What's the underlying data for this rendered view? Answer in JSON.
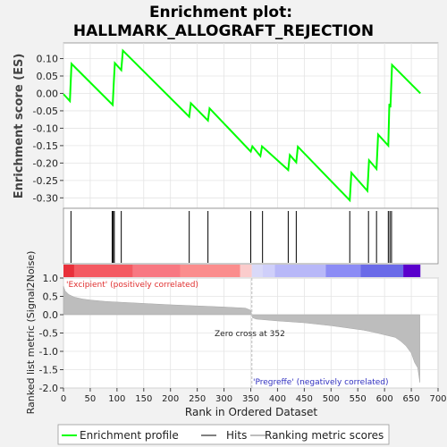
{
  "chart_data": {
    "type": "line",
    "title_lines": [
      "Enrichment plot:",
      "HALLMARK_ALLOGRAFT_REJECTION"
    ],
    "es_panel": {
      "ylabel": "Enrichment score (ES)",
      "ylim": [
        -0.33,
        0.145
      ],
      "yticks": [
        0.1,
        0.05,
        0.0,
        -0.05,
        -0.1,
        -0.15,
        -0.2,
        -0.25,
        -0.3
      ],
      "ytick_labels": [
        "0.10",
        "0.05",
        "0.00",
        "-0.05",
        "-0.10",
        "-0.15",
        "-0.20",
        "-0.25",
        "-0.30"
      ],
      "series": [
        {
          "color": "#00ff00",
          "x": [
            0,
            12,
            15,
            92,
            94,
            96,
            108,
            111,
            235,
            238,
            270,
            273,
            350,
            353,
            368,
            371,
            420,
            423,
            435,
            438,
            535,
            538,
            568,
            571,
            585,
            588,
            607,
            609,
            611,
            614,
            667
          ],
          "y": [
            -0.002,
            -0.022,
            0.085,
            -0.033,
            0.03,
            0.087,
            0.067,
            0.123,
            -0.067,
            -0.028,
            -0.078,
            -0.043,
            -0.167,
            -0.152,
            -0.18,
            -0.152,
            -0.22,
            -0.177,
            -0.198,
            -0.153,
            -0.307,
            -0.228,
            -0.28,
            -0.192,
            -0.217,
            -0.118,
            -0.15,
            -0.03,
            -0.04,
            0.082,
            0.0
          ]
        }
      ]
    },
    "hits": [
      14,
      91,
      93,
      95,
      108,
      235,
      270,
      350,
      372,
      420,
      435,
      535,
      570,
      585,
      607,
      610,
      613
    ],
    "ranking_panel": {
      "ylabel": "Ranked list metric (Signal2Noise)",
      "xlabel": "Rank in Ordered Dataset",
      "xlim": [
        0,
        700
      ],
      "ylim": [
        -2,
        1
      ],
      "xticks": [
        0,
        50,
        100,
        150,
        200,
        250,
        300,
        350,
        400,
        450,
        500,
        550,
        600,
        650,
        700
      ],
      "yticks": [
        1.0,
        0.5,
        0.0,
        -0.5,
        -1.0,
        -1.5,
        -2.0
      ],
      "ytick_labels": [
        "1.0",
        "0.5",
        "0.0",
        "-0.5",
        "-1.0",
        "-1.5",
        "-2.0"
      ],
      "metric_curve": {
        "x": [
          0,
          3,
          10,
          20,
          35,
          50,
          80,
          120,
          160,
          200,
          250,
          300,
          340,
          350,
          353,
          360,
          400,
          450,
          500,
          540,
          560,
          580,
          600,
          620,
          630,
          640,
          650,
          656,
          662,
          666
        ],
        "y": [
          0.78,
          0.65,
          0.55,
          0.48,
          0.43,
          0.4,
          0.36,
          0.33,
          0.3,
          0.27,
          0.24,
          0.21,
          0.18,
          0.12,
          -0.08,
          -0.12,
          -0.17,
          -0.22,
          -0.3,
          -0.38,
          -0.42,
          -0.48,
          -0.55,
          -0.62,
          -0.72,
          -0.85,
          -1.05,
          -1.3,
          -1.45,
          -1.85
        ]
      },
      "zero_cross_rank": 352,
      "zero_cross_label": "Zero cross at 352",
      "positive_label": "'Excipient' (positively correlated)",
      "negative_label": "'Pregreffe' (negatively correlated)",
      "colorbar": [
        {
          "from": 0,
          "to": 20,
          "color": "#e8303a"
        },
        {
          "from": 20,
          "to": 130,
          "color": "#f45a62"
        },
        {
          "from": 130,
          "to": 218,
          "color": "#f87882"
        },
        {
          "from": 218,
          "to": 330,
          "color": "#fb8d8d"
        },
        {
          "from": 330,
          "to": 352,
          "color": "#fbcccc"
        },
        {
          "from": 352,
          "to": 372,
          "color": "#d9d9f8"
        },
        {
          "from": 372,
          "to": 395,
          "color": "#cfcffa"
        },
        {
          "from": 395,
          "to": 490,
          "color": "#b8b8f8"
        },
        {
          "from": 490,
          "to": 555,
          "color": "#8c8cf5"
        },
        {
          "from": 555,
          "to": 635,
          "color": "#6a6ae8"
        },
        {
          "from": 635,
          "to": 667,
          "color": "#5a00cc"
        }
      ]
    },
    "legend": [
      {
        "label": "Enrichment profile",
        "color": "#00ff00"
      },
      {
        "label": "Hits",
        "color": "#000000"
      },
      {
        "label": "Ranking metric scores",
        "color": "#bdbdbd"
      }
    ]
  }
}
